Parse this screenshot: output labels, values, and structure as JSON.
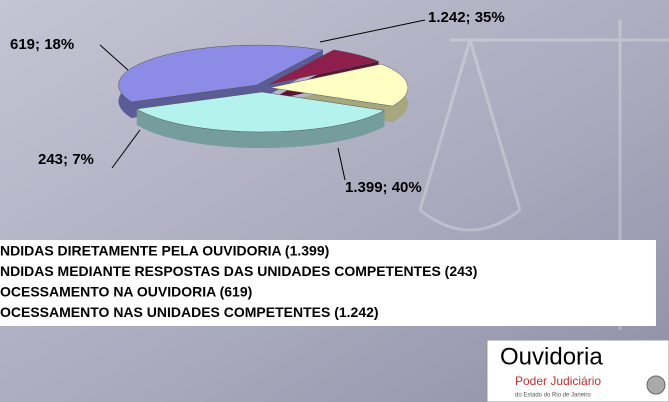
{
  "chart_data": {
    "type": "pie",
    "categories": [
      "NDIDAS DIRETAMENTE PELA OUVIDORIA (1.399)",
      "NDIDAS MEDIANTE RESPOSTAS DAS UNIDADES COMPETENTES (243)",
      "OCESSAMENTO NA OUVIDORIA (619)",
      "OCESSAMENTO NAS UNIDADES COMPETENTES (1.242)"
    ],
    "values": [
      1399,
      243,
      619,
      1242
    ],
    "value_labels": [
      "1.399; 40%",
      "243; 7%",
      "619; 18%",
      "1.242; 35%"
    ],
    "colors": [
      "#8c8ce6",
      "#8e1f4c",
      "#ffffc4",
      "#b4f2ee"
    ]
  },
  "logo": {
    "name": "Ouvidoria",
    "line1": "Poder Judiciário",
    "line2": "do Estado do Rio de Janeiro"
  }
}
